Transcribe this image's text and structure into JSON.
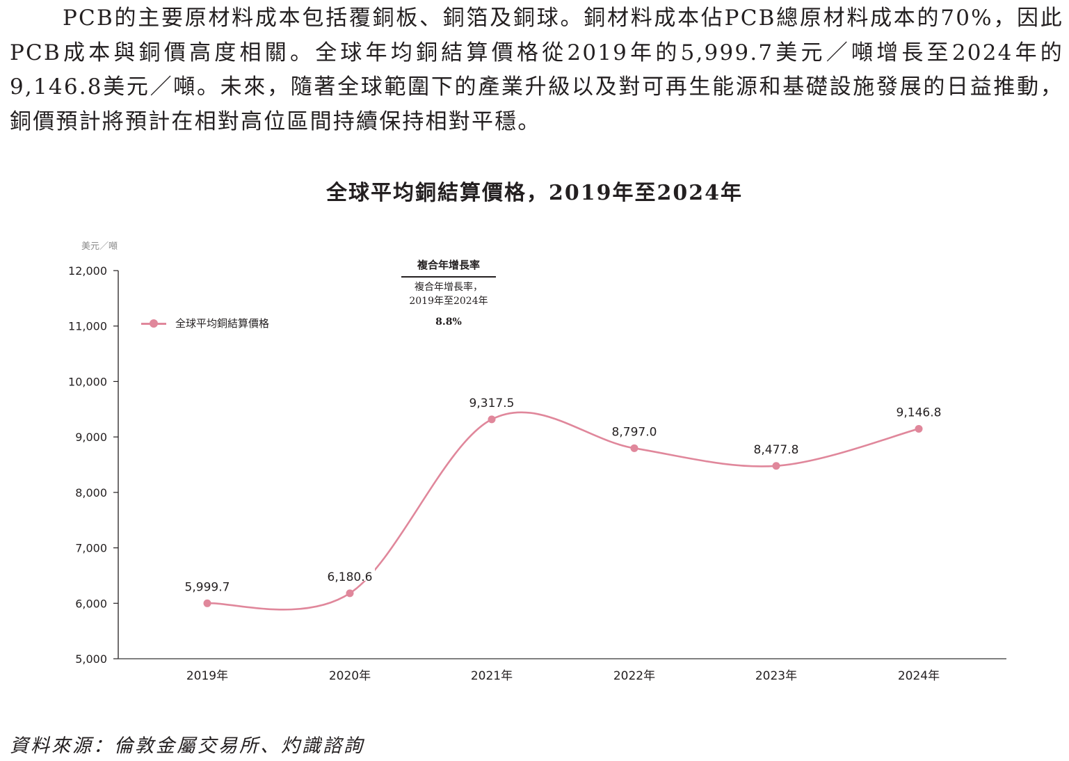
{
  "paragraph": "PCB的主要原材料成本包括覆銅板、銅箔及銅球。銅材料成本佔PCB總原材料成本的70%，因此PCB成本與銅價高度相關。全球年均銅結算價格從2019年的5,999.7美元／噸增長至2024年的9,146.8美元／噸。未來，隨著全球範圍下的產業升級以及對可再生能源和基礎設施發展的日益推動，銅價預計將預計在相對高位區間持續保持相對平穩。",
  "chart": {
    "title": "全球平均銅結算價格，2019年至2024年",
    "unit_label": "美元／噸",
    "legend_label": "全球平均銅結算價格",
    "cagr": {
      "header": "複合年增長率",
      "sub_line1": "複合年增長率，",
      "sub_line2": "2019年至2024年",
      "value": "8.8%"
    },
    "y_ticks": [
      "12,000",
      "11,000",
      "10,000",
      "9,000",
      "8,000",
      "7,000",
      "6,000",
      "5,000"
    ],
    "x_labels": [
      "2019年",
      "2020年",
      "2021年",
      "2022年",
      "2023年",
      "2024年"
    ],
    "data_labels": [
      "5,999.7",
      "6,180.6",
      "9,317.5",
      "8,797.0",
      "8,477.8",
      "9,146.8"
    ],
    "line_color": "#e0879b"
  },
  "source": "資料來源：倫敦金屬交易所、灼識諮詢",
  "chart_data": {
    "type": "line",
    "title": "全球平均銅結算價格，2019年至2024年",
    "xlabel": "",
    "ylabel": "美元／噸",
    "categories": [
      "2019年",
      "2020年",
      "2021年",
      "2022年",
      "2023年",
      "2024年"
    ],
    "series": [
      {
        "name": "全球平均銅結算價格",
        "values": [
          5999.7,
          6180.6,
          9317.5,
          8797.0,
          8477.8,
          9146.8
        ],
        "color": "#e0879b",
        "smooth": true,
        "markers": true,
        "data_labels": true
      }
    ],
    "ylim": [
      5000,
      12000
    ],
    "yticks": [
      5000,
      6000,
      7000,
      8000,
      9000,
      10000,
      11000,
      12000
    ],
    "grid": false,
    "legend_position": "upper-left",
    "annotations": [
      {
        "text": "複合年增長率",
        "type": "table-header"
      },
      {
        "text": "複合年增長率，2019年至2024年",
        "type": "table-row-label"
      },
      {
        "text": "8.8%",
        "type": "table-value"
      }
    ]
  }
}
